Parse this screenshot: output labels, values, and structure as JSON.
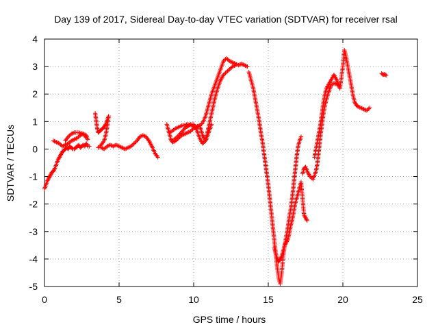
{
  "chart_data": {
    "type": "scatter",
    "title": "Day 139 of 2017, Sidereal Day-to-day VTEC variation (SDTVAR) for receiver rsal",
    "xlabel": "GPS time / hours",
    "ylabel": "SDTVAR / TECUs",
    "xlim": [
      0,
      25
    ],
    "ylim": [
      -5,
      4
    ],
    "xticks": [
      "0",
      "5",
      "10",
      "15",
      "20",
      "25"
    ],
    "yticks": [
      "-5",
      "-4",
      "-3",
      "-2",
      "-1",
      "0",
      "1",
      "2",
      "3",
      "4"
    ],
    "grid": true,
    "marker": "+",
    "marker_color": "#ff0000",
    "series": [
      {
        "x": [
          0.0,
          0.1,
          0.2,
          0.3,
          0.4,
          0.5,
          0.6,
          0.7,
          0.8,
          0.9,
          1.0,
          1.1,
          1.2,
          1.3,
          1.4,
          1.5,
          1.6,
          1.7,
          1.8,
          1.9,
          2.0,
          2.1,
          2.2,
          2.3,
          2.4,
          2.5,
          2.6,
          2.7,
          2.8,
          2.9,
          3.0
        ],
        "y": [
          -1.45,
          -1.3,
          -1.15,
          -1.05,
          -0.95,
          -0.85,
          -0.8,
          -0.7,
          -0.55,
          -0.4,
          -0.3,
          -0.2,
          -0.1,
          -0.05,
          0.0,
          0.05,
          0.0,
          0.1,
          0.05,
          0.0,
          0.0,
          0.05,
          0.1,
          0.15,
          0.05,
          0.1,
          0.15,
          0.1,
          0.2,
          0.1,
          0.1
        ]
      },
      {
        "x": [
          0.6,
          0.8,
          1.0,
          1.2,
          1.4,
          1.6,
          1.8,
          2.0,
          2.2,
          2.4,
          2.6,
          2.8,
          2.9,
          2.6,
          2.3,
          2.0,
          1.8,
          1.6,
          1.4
        ],
        "y": [
          0.3,
          0.25,
          0.2,
          0.1,
          0.15,
          0.2,
          0.3,
          0.35,
          0.4,
          0.5,
          0.55,
          0.5,
          0.35,
          0.55,
          0.6,
          0.6,
          0.55,
          0.45,
          0.3
        ]
      },
      {
        "x": [
          3.4,
          3.45,
          3.5,
          3.55,
          3.6,
          3.7,
          3.8,
          3.9,
          4.0,
          4.1,
          4.2,
          4.3,
          4.2,
          4.1,
          4.0,
          3.8,
          3.6
        ],
        "y": [
          1.3,
          1.1,
          0.9,
          0.7,
          0.6,
          0.65,
          0.7,
          0.75,
          0.8,
          0.9,
          1.05,
          1.2,
          0.8,
          0.5,
          0.3,
          0.15,
          0.05
        ]
      },
      {
        "x": [
          3.8,
          4.0,
          4.2,
          4.4,
          4.6,
          4.8,
          5.0,
          5.2,
          5.4,
          5.6,
          5.8,
          6.0,
          6.2,
          6.4,
          6.6,
          6.8,
          7.0,
          7.2,
          7.4,
          7.6
        ],
        "y": [
          0.05,
          0.0,
          0.1,
          0.15,
          0.1,
          0.15,
          0.1,
          0.05,
          0.0,
          0.05,
          0.1,
          0.2,
          0.3,
          0.45,
          0.5,
          0.45,
          0.3,
          0.1,
          -0.15,
          -0.3
        ]
      },
      {
        "x": [
          8.2,
          8.3,
          8.4,
          8.5,
          8.6,
          8.8,
          9.0,
          9.2,
          9.4,
          9.6,
          9.8,
          10.0,
          10.2,
          10.4,
          10.6,
          10.8,
          11.0,
          11.2,
          11.4,
          11.6,
          11.8,
          12.0,
          12.2,
          12.4,
          12.6,
          12.8,
          13.0,
          13.2,
          13.4,
          13.6
        ],
        "y": [
          0.9,
          0.7,
          0.5,
          0.3,
          0.25,
          0.3,
          0.4,
          0.5,
          0.55,
          0.6,
          0.65,
          0.75,
          0.8,
          0.85,
          0.95,
          1.2,
          1.6,
          2.0,
          2.3,
          2.6,
          2.9,
          3.2,
          3.3,
          3.2,
          3.15,
          3.1,
          3.05,
          3.1,
          3.05,
          3.0
        ]
      },
      {
        "x": [
          8.6,
          9.0,
          9.4,
          9.8,
          10.0,
          10.2,
          10.4,
          10.6,
          10.8,
          11.0,
          11.2,
          11.4,
          11.6,
          11.8,
          12.0,
          12.2,
          12.4,
          12.6,
          12.8
        ],
        "y": [
          0.3,
          0.5,
          0.75,
          0.9,
          0.9,
          0.7,
          0.4,
          0.2,
          0.3,
          0.8,
          1.3,
          1.8,
          2.2,
          2.5,
          2.7,
          2.8,
          2.9,
          3.0,
          3.05
        ]
      },
      {
        "x": [
          8.4,
          8.8,
          9.2,
          9.6,
          9.9,
          10.1,
          10.4,
          10.6,
          10.8,
          11.0,
          11.2
        ],
        "y": [
          0.6,
          0.75,
          0.85,
          0.9,
          0.85,
          0.8,
          0.85,
          0.5,
          0.3,
          0.6,
          0.9
        ]
      },
      {
        "x": [
          13.7,
          13.8,
          13.9,
          14.0,
          14.1,
          14.2,
          14.3,
          14.4,
          14.5,
          14.6,
          14.7,
          14.8,
          14.9,
          15.0,
          15.1,
          15.2,
          15.3,
          15.4,
          15.5,
          15.6,
          15.7,
          15.8,
          15.9,
          16.0,
          16.1,
          16.2,
          16.3,
          16.4,
          16.5,
          16.6,
          16.7,
          16.8,
          16.9,
          17.0,
          17.1,
          17.2
        ],
        "y": [
          2.8,
          2.6,
          2.4,
          2.2,
          1.9,
          1.6,
          1.3,
          1.0,
          0.6,
          0.3,
          -0.1,
          -0.5,
          -0.9,
          -1.3,
          -1.8,
          -2.3,
          -2.8,
          -3.3,
          -3.8,
          -4.3,
          -4.7,
          -4.9,
          -4.5,
          -3.9,
          -3.5,
          -3.2,
          -2.9,
          -2.5,
          -2.2,
          -1.8,
          -1.3,
          -0.8,
          -0.3,
          0.1,
          0.3,
          0.45
        ]
      },
      {
        "x": [
          15.4,
          15.5,
          15.6,
          15.7,
          15.8,
          15.9,
          16.0,
          16.1,
          16.2,
          16.3,
          16.4,
          16.5,
          16.6,
          16.8,
          17.0,
          17.2,
          17.4,
          17.5,
          17.6
        ],
        "y": [
          -3.6,
          -3.8,
          -4.0,
          -4.1,
          -4.0,
          -3.9,
          -3.7,
          -3.5,
          -3.4,
          -3.3,
          -3.1,
          -2.8,
          -2.6,
          -2.0,
          -1.6,
          -1.2,
          -2.4,
          -2.5,
          -2.6
        ]
      },
      {
        "x": [
          17.3,
          17.4,
          17.5,
          17.6,
          17.8,
          18.0,
          18.2,
          18.3,
          18.4,
          18.5,
          18.6,
          18.7,
          18.8,
          19.0,
          19.2,
          19.4,
          19.6,
          19.8
        ],
        "y": [
          -0.9,
          -0.7,
          -0.65,
          -0.8,
          -1.0,
          -1.1,
          -0.8,
          -0.5,
          0.0,
          0.5,
          0.9,
          1.3,
          1.6,
          2.0,
          2.3,
          2.4,
          2.35,
          2.3
        ]
      },
      {
        "x": [
          18.1,
          18.2,
          18.3,
          18.4,
          18.5,
          18.6,
          18.7,
          18.8,
          18.9,
          19.0,
          19.2,
          19.4,
          19.6,
          19.8,
          20.0,
          20.1,
          20.2,
          20.3,
          20.4,
          20.5,
          20.6,
          20.7,
          20.8,
          20.9,
          21.0,
          21.2,
          21.4,
          21.6,
          21.8
        ],
        "y": [
          -0.3,
          0.0,
          0.3,
          0.6,
          0.9,
          1.3,
          1.7,
          2.0,
          2.2,
          2.3,
          2.5,
          2.7,
          2.5,
          2.2,
          3.0,
          3.6,
          3.4,
          3.1,
          2.8,
          2.5,
          2.2,
          1.9,
          1.7,
          1.6,
          1.55,
          1.5,
          1.45,
          1.4,
          1.5
        ]
      },
      {
        "x": [
          22.6,
          22.7,
          22.8,
          22.9
        ],
        "y": [
          2.75,
          2.7,
          2.72,
          2.68
        ]
      }
    ]
  }
}
